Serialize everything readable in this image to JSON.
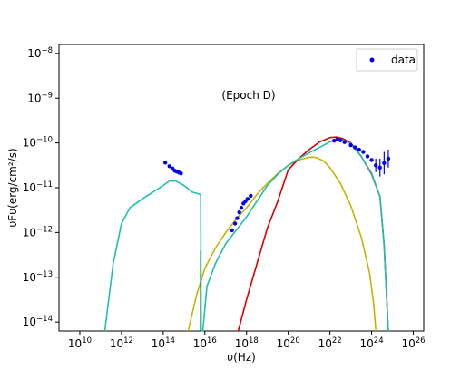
{
  "chart_data": {
    "type": "line",
    "title": "",
    "annotation": "(Epoch D)",
    "xlabel_text": "υ(Hz)",
    "ylabel_text": "υFυ(erg/cm²/s)",
    "xscale": "log",
    "yscale": "log",
    "xlim_log10": [
      9.0,
      26.5
    ],
    "ylim_log10": [
      -14.2,
      -7.8
    ],
    "x_ticks": [
      {
        "exp": "10",
        "v": 10
      },
      {
        "exp": "12",
        "v": 12
      },
      {
        "exp": "14",
        "v": 14
      },
      {
        "exp": "16",
        "v": 16
      },
      {
        "exp": "18",
        "v": 18
      },
      {
        "exp": "20",
        "v": 20
      },
      {
        "exp": "22",
        "v": 22
      },
      {
        "exp": "24",
        "v": 24
      },
      {
        "exp": "26",
        "v": 26
      }
    ],
    "y_ticks": [
      {
        "exp": "−14",
        "v": -14
      },
      {
        "exp": "−13",
        "v": -13
      },
      {
        "exp": "−12",
        "v": -12
      },
      {
        "exp": "−11",
        "v": -11
      },
      {
        "exp": "−10",
        "v": -10
      },
      {
        "exp": "−9",
        "v": -9
      },
      {
        "exp": "−8",
        "v": -8
      }
    ],
    "tick_base": "10",
    "legend": {
      "label": "data",
      "placement": "top-right",
      "color": "#0000ff"
    },
    "series": [
      {
        "color": "#c8b400",
        "points": [
          [
            15.2,
            -14.2
          ],
          [
            15.6,
            -13.4
          ],
          [
            16.0,
            -12.8
          ],
          [
            16.5,
            -12.35
          ],
          [
            17.0,
            -12.0
          ],
          [
            17.5,
            -11.7
          ],
          [
            18.0,
            -11.45
          ],
          [
            18.5,
            -11.15
          ],
          [
            19.0,
            -10.9
          ],
          [
            19.5,
            -10.68
          ],
          [
            20.0,
            -10.5
          ],
          [
            20.5,
            -10.38
          ],
          [
            21.0,
            -10.32
          ],
          [
            21.3,
            -10.32
          ],
          [
            21.7,
            -10.4
          ],
          [
            22.0,
            -10.55
          ],
          [
            22.5,
            -10.9
          ],
          [
            23.0,
            -11.4
          ],
          [
            23.5,
            -12.1
          ],
          [
            23.9,
            -12.9
          ],
          [
            24.1,
            -13.6
          ],
          [
            24.2,
            -14.2
          ]
        ]
      },
      {
        "color": "#dd0000",
        "points": [
          [
            17.6,
            -14.2
          ],
          [
            18.0,
            -13.5
          ],
          [
            18.5,
            -12.7
          ],
          [
            19.0,
            -11.9
          ],
          [
            19.5,
            -11.3
          ],
          [
            20.0,
            -10.6
          ],
          [
            20.5,
            -10.35
          ],
          [
            21.0,
            -10.15
          ],
          [
            21.5,
            -9.98
          ],
          [
            22.0,
            -9.88
          ],
          [
            22.3,
            -9.87
          ],
          [
            22.6,
            -9.9
          ],
          [
            23.0,
            -10.0
          ],
          [
            23.5,
            -10.3
          ],
          [
            24.0,
            -10.7
          ],
          [
            24.4,
            -11.2
          ],
          [
            24.6,
            -12.3
          ],
          [
            24.8,
            -14.2
          ]
        ]
      },
      {
        "color": "#006400",
        "points": [
          [
            15.8,
            -12.4
          ],
          [
            15.8,
            -14.2
          ]
        ]
      },
      {
        "color": "#1fbfb0",
        "points": [
          [
            11.2,
            -14.2
          ],
          [
            11.6,
            -12.7
          ],
          [
            12.0,
            -11.8
          ],
          [
            12.4,
            -11.45
          ],
          [
            13.0,
            -11.25
          ],
          [
            13.5,
            -11.1
          ],
          [
            14.0,
            -10.95
          ],
          [
            14.3,
            -10.85
          ],
          [
            14.6,
            -10.85
          ],
          [
            15.0,
            -10.95
          ],
          [
            15.4,
            -11.1
          ],
          [
            15.8,
            -11.15
          ],
          [
            15.82,
            -14.2
          ],
          [
            15.9,
            -14.2
          ],
          [
            16.1,
            -13.2
          ],
          [
            16.5,
            -12.7
          ],
          [
            17.0,
            -12.25
          ],
          [
            17.5,
            -11.95
          ],
          [
            18.0,
            -11.65
          ],
          [
            18.5,
            -11.3
          ],
          [
            19.0,
            -10.95
          ],
          [
            19.5,
            -10.7
          ],
          [
            20.0,
            -10.5
          ],
          [
            20.5,
            -10.35
          ],
          [
            21.0,
            -10.22
          ],
          [
            21.5,
            -10.1
          ],
          [
            22.0,
            -9.98
          ],
          [
            22.3,
            -9.92
          ],
          [
            22.6,
            -9.93
          ],
          [
            23.0,
            -10.02
          ],
          [
            23.5,
            -10.3
          ],
          [
            24.0,
            -10.68
          ],
          [
            24.4,
            -11.2
          ],
          [
            24.6,
            -12.3
          ],
          [
            24.8,
            -14.2
          ]
        ]
      }
    ],
    "data_points": [
      {
        "x": 14.1,
        "y": -10.44,
        "err": 0
      },
      {
        "x": 14.3,
        "y": -10.52,
        "err": 0
      },
      {
        "x": 14.45,
        "y": -10.57,
        "err": 0
      },
      {
        "x": 14.55,
        "y": -10.62,
        "err": 0
      },
      {
        "x": 14.65,
        "y": -10.64,
        "err": 0
      },
      {
        "x": 14.75,
        "y": -10.66,
        "err": 0
      },
      {
        "x": 14.85,
        "y": -10.68,
        "err": 0
      },
      {
        "x": 17.3,
        "y": -11.95,
        "err": 0
      },
      {
        "x": 17.45,
        "y": -11.8,
        "err": 0
      },
      {
        "x": 17.55,
        "y": -11.68,
        "err": 0
      },
      {
        "x": 17.65,
        "y": -11.55,
        "err": 0
      },
      {
        "x": 17.75,
        "y": -11.45,
        "err": 0
      },
      {
        "x": 17.85,
        "y": -11.35,
        "err": 0
      },
      {
        "x": 17.95,
        "y": -11.3,
        "err": 0
      },
      {
        "x": 18.05,
        "y": -11.25,
        "err": 0
      },
      {
        "x": 18.2,
        "y": -11.18,
        "err": 0
      },
      {
        "x": 22.2,
        "y": -9.95,
        "err": 0
      },
      {
        "x": 22.35,
        "y": -9.92,
        "err": 0
      },
      {
        "x": 22.5,
        "y": -9.94,
        "err": 0
      },
      {
        "x": 22.7,
        "y": -9.98,
        "err": 0
      },
      {
        "x": 23.0,
        "y": -10.05,
        "err": 0
      },
      {
        "x": 23.2,
        "y": -10.1,
        "err": 0
      },
      {
        "x": 23.4,
        "y": -10.15,
        "err": 0
      },
      {
        "x": 23.6,
        "y": -10.2,
        "err": 0
      },
      {
        "x": 23.8,
        "y": -10.3,
        "err": 0
      },
      {
        "x": 24.0,
        "y": -10.38,
        "err": 0
      },
      {
        "x": 24.2,
        "y": -10.5,
        "err": 0.15
      },
      {
        "x": 24.4,
        "y": -10.55,
        "err": 0.2
      },
      {
        "x": 24.6,
        "y": -10.45,
        "err": 0.25
      },
      {
        "x": 24.8,
        "y": -10.35,
        "err": 0.2
      }
    ]
  }
}
